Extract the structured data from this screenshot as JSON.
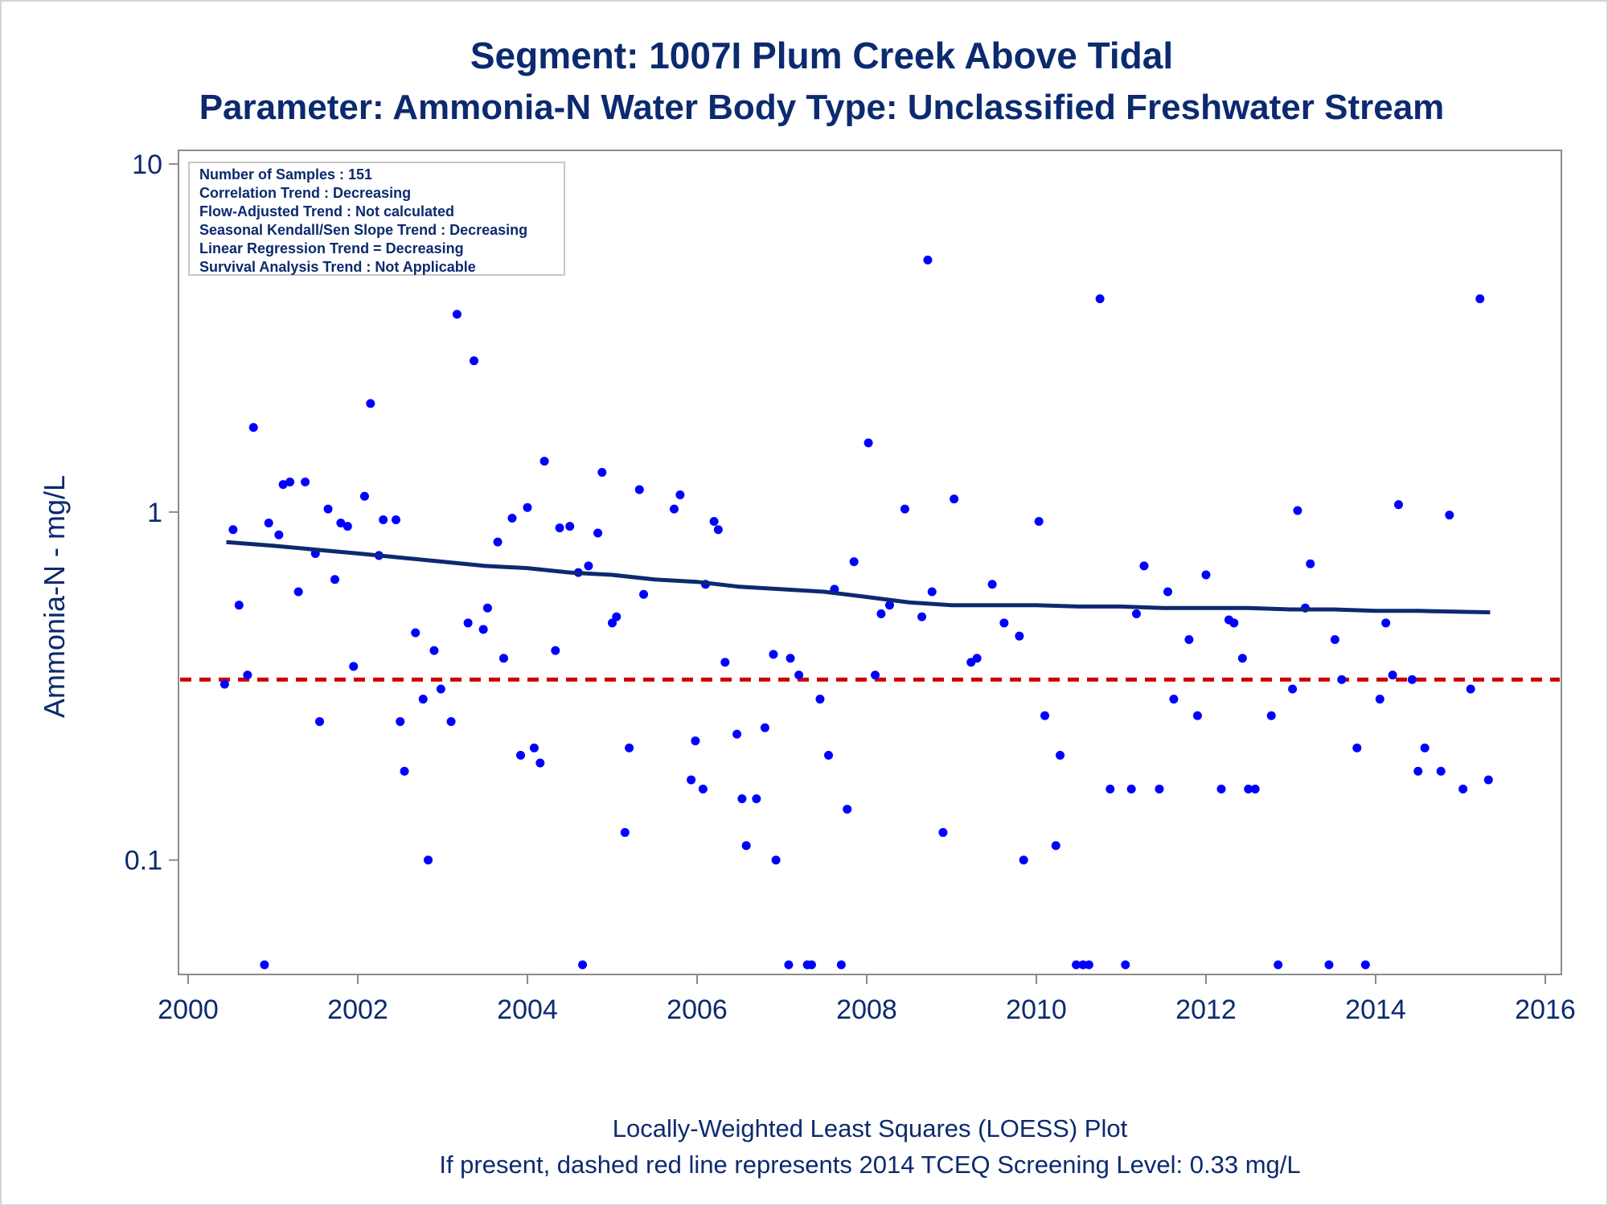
{
  "chart_data": {
    "type": "scatter",
    "title": "Segment: 1007I  Plum Creek Above Tidal",
    "subtitle": "Parameter: Ammonia-N   Water Body Type: Unclassified Freshwater Stream",
    "xlabel": "",
    "ylabel": "Ammonia-N - mg/L",
    "xlim": [
      2000,
      2016
    ],
    "ylim": [
      0.05,
      10
    ],
    "y_scale": "log",
    "x_ticks": [
      "2000",
      "2002",
      "2004",
      "2006",
      "2008",
      "2010",
      "2012",
      "2014",
      "2016"
    ],
    "y_ticks": [
      "0.1",
      "1",
      "10"
    ],
    "grid": false,
    "legend": "none",
    "stats_box": [
      "Number of Samples : 151",
      "Correlation Trend : Decreasing",
      "Flow-Adjusted Trend : Not calculated",
      "Seasonal Kendall/Sen Slope Trend : Decreasing",
      "Linear Regression Trend = Decreasing",
      "Survival Analysis Trend : Not Applicable"
    ],
    "footnotes": [
      "Locally-Weighted Least Squares (LOESS) Plot",
      "If present, dashed red line represents 2014 TCEQ Screening Level: 0.33 mg/L"
    ],
    "screening_level": 0.33,
    "colors": {
      "points": "#0000ff",
      "loess": "#0b2a6f",
      "screening": "#cc0000",
      "text": "#0b2a6f",
      "axis": "#8c8c8c"
    },
    "points": [
      [
        2000.43,
        0.32
      ],
      [
        2000.53,
        0.89
      ],
      [
        2000.6,
        0.54
      ],
      [
        2000.7,
        0.34
      ],
      [
        2000.77,
        1.75
      ],
      [
        2000.9,
        0.05
      ],
      [
        2000.95,
        0.93
      ],
      [
        2001.07,
        0.86
      ],
      [
        2001.12,
        1.2
      ],
      [
        2001.2,
        1.22
      ],
      [
        2001.3,
        0.59
      ],
      [
        2001.38,
        1.22
      ],
      [
        2001.5,
        0.76
      ],
      [
        2001.55,
        0.25
      ],
      [
        2001.65,
        1.02
      ],
      [
        2001.73,
        0.64
      ],
      [
        2001.8,
        0.93
      ],
      [
        2001.88,
        0.91
      ],
      [
        2001.95,
        0.36
      ],
      [
        2002.08,
        1.11
      ],
      [
        2002.15,
        2.05
      ],
      [
        2002.25,
        0.75
      ],
      [
        2002.3,
        0.95
      ],
      [
        2002.45,
        0.95
      ],
      [
        2002.5,
        0.25
      ],
      [
        2002.55,
        0.18
      ],
      [
        2002.68,
        0.45
      ],
      [
        2002.77,
        0.29
      ],
      [
        2002.83,
        0.1
      ],
      [
        2002.9,
        0.4
      ],
      [
        2002.98,
        0.31
      ],
      [
        2003.1,
        0.25
      ],
      [
        2003.17,
        3.7
      ],
      [
        2003.3,
        0.48
      ],
      [
        2003.37,
        2.72
      ],
      [
        2003.48,
        0.46
      ],
      [
        2003.53,
        0.53
      ],
      [
        2003.65,
        0.82
      ],
      [
        2003.72,
        0.38
      ],
      [
        2003.82,
        0.96
      ],
      [
        2003.92,
        0.2
      ],
      [
        2004.0,
        1.03
      ],
      [
        2004.08,
        0.21
      ],
      [
        2004.15,
        0.19
      ],
      [
        2004.2,
        1.4
      ],
      [
        2004.33,
        0.4
      ],
      [
        2004.38,
        0.9
      ],
      [
        2004.5,
        0.91
      ],
      [
        2004.6,
        0.67
      ],
      [
        2004.65,
        0.05
      ],
      [
        2004.72,
        0.7
      ],
      [
        2004.83,
        0.87
      ],
      [
        2004.88,
        1.3
      ],
      [
        2005.0,
        0.48
      ],
      [
        2005.05,
        0.5
      ],
      [
        2005.15,
        0.12
      ],
      [
        2005.2,
        0.21
      ],
      [
        2005.32,
        1.16
      ],
      [
        2005.37,
        0.58
      ],
      [
        2005.73,
        1.02
      ],
      [
        2005.8,
        1.12
      ],
      [
        2005.93,
        0.17
      ],
      [
        2005.98,
        0.22
      ],
      [
        2006.07,
        0.16
      ],
      [
        2006.1,
        0.62
      ],
      [
        2006.2,
        0.94
      ],
      [
        2006.25,
        0.89
      ],
      [
        2006.33,
        0.37
      ],
      [
        2006.47,
        0.23
      ],
      [
        2006.53,
        0.15
      ],
      [
        2006.58,
        0.11
      ],
      [
        2006.7,
        0.15
      ],
      [
        2006.8,
        0.24
      ],
      [
        2006.9,
        0.39
      ],
      [
        2006.93,
        0.1
      ],
      [
        2007.08,
        0.05
      ],
      [
        2007.1,
        0.38
      ],
      [
        2007.2,
        0.34
      ],
      [
        2007.3,
        0.05
      ],
      [
        2007.35,
        0.05
      ],
      [
        2007.45,
        0.29
      ],
      [
        2007.55,
        0.2
      ],
      [
        2007.62,
        0.6
      ],
      [
        2007.7,
        0.05
      ],
      [
        2007.77,
        0.14
      ],
      [
        2007.85,
        0.72
      ],
      [
        2008.02,
        1.58
      ],
      [
        2008.1,
        0.34
      ],
      [
        2008.17,
        0.51
      ],
      [
        2008.27,
        0.54
      ],
      [
        2008.45,
        1.02
      ],
      [
        2008.65,
        0.5
      ],
      [
        2008.72,
        5.3
      ],
      [
        2008.77,
        0.59
      ],
      [
        2008.9,
        0.12
      ],
      [
        2009.03,
        1.09
      ],
      [
        2009.23,
        0.37
      ],
      [
        2009.3,
        0.38
      ],
      [
        2009.48,
        0.62
      ],
      [
        2009.62,
        0.48
      ],
      [
        2009.8,
        0.44
      ],
      [
        2009.85,
        0.1
      ],
      [
        2010.03,
        0.94
      ],
      [
        2010.1,
        0.26
      ],
      [
        2010.23,
        0.11
      ],
      [
        2010.28,
        0.2
      ],
      [
        2010.47,
        0.05
      ],
      [
        2010.55,
        0.05
      ],
      [
        2010.62,
        0.05
      ],
      [
        2010.75,
        4.1
      ],
      [
        2010.87,
        0.16
      ],
      [
        2011.05,
        0.05
      ],
      [
        2011.12,
        0.16
      ],
      [
        2011.18,
        0.51
      ],
      [
        2011.27,
        0.7
      ],
      [
        2011.45,
        0.16
      ],
      [
        2011.55,
        0.59
      ],
      [
        2011.62,
        0.29
      ],
      [
        2011.8,
        0.43
      ],
      [
        2011.9,
        0.26
      ],
      [
        2012.0,
        0.66
      ],
      [
        2012.18,
        0.16
      ],
      [
        2012.27,
        0.49
      ],
      [
        2012.33,
        0.48
      ],
      [
        2012.43,
        0.38
      ],
      [
        2012.5,
        0.16
      ],
      [
        2012.58,
        0.16
      ],
      [
        2012.77,
        0.26
      ],
      [
        2012.85,
        0.05
      ],
      [
        2013.02,
        0.31
      ],
      [
        2013.08,
        1.01
      ],
      [
        2013.17,
        0.53
      ],
      [
        2013.23,
        0.71
      ],
      [
        2013.45,
        0.05
      ],
      [
        2013.52,
        0.43
      ],
      [
        2013.6,
        0.33
      ],
      [
        2013.78,
        0.21
      ],
      [
        2013.88,
        0.05
      ],
      [
        2014.05,
        0.29
      ],
      [
        2014.12,
        0.48
      ],
      [
        2014.2,
        0.34
      ],
      [
        2014.27,
        1.05
      ],
      [
        2014.43,
        0.33
      ],
      [
        2014.5,
        0.18
      ],
      [
        2014.58,
        0.21
      ],
      [
        2014.77,
        0.18
      ],
      [
        2014.87,
        0.98
      ],
      [
        2015.03,
        0.16
      ],
      [
        2015.12,
        0.31
      ],
      [
        2015.23,
        4.1
      ],
      [
        2015.33,
        0.17
      ]
    ],
    "loess": [
      [
        2000.45,
        0.82
      ],
      [
        2001.0,
        0.8
      ],
      [
        2001.5,
        0.78
      ],
      [
        2002.0,
        0.76
      ],
      [
        2002.5,
        0.74
      ],
      [
        2003.0,
        0.72
      ],
      [
        2003.5,
        0.7
      ],
      [
        2004.0,
        0.69
      ],
      [
        2004.5,
        0.67
      ],
      [
        2005.0,
        0.66
      ],
      [
        2005.5,
        0.64
      ],
      [
        2006.0,
        0.63
      ],
      [
        2006.5,
        0.61
      ],
      [
        2007.0,
        0.6
      ],
      [
        2007.5,
        0.59
      ],
      [
        2008.0,
        0.57
      ],
      [
        2008.5,
        0.55
      ],
      [
        2009.0,
        0.54
      ],
      [
        2009.5,
        0.54
      ],
      [
        2010.0,
        0.54
      ],
      [
        2010.5,
        0.535
      ],
      [
        2011.0,
        0.535
      ],
      [
        2011.5,
        0.53
      ],
      [
        2012.0,
        0.53
      ],
      [
        2012.5,
        0.53
      ],
      [
        2013.0,
        0.525
      ],
      [
        2013.5,
        0.525
      ],
      [
        2014.0,
        0.52
      ],
      [
        2014.5,
        0.52
      ],
      [
        2015.35,
        0.515
      ]
    ]
  }
}
